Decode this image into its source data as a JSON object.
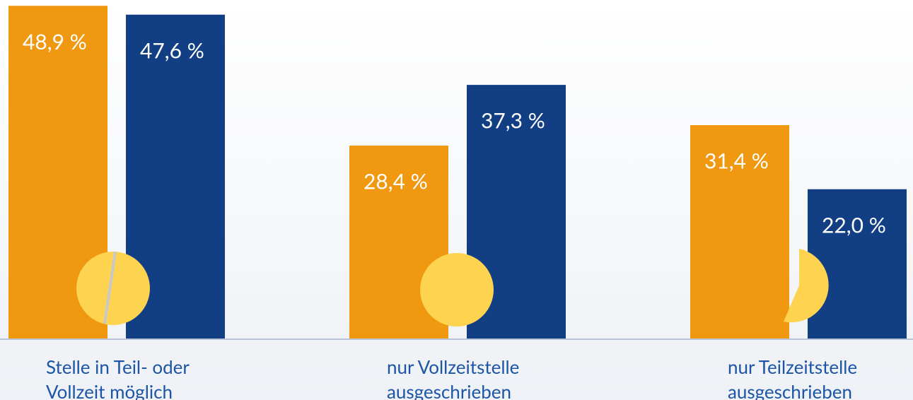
{
  "chart_data": {
    "type": "bar",
    "categories": [
      "Stelle in Teil- oder\nVollzeit möglich",
      "nur Vollzeitstelle\nausgeschrieben",
      "nur Teilzeitstelle\nausgeschrieben"
    ],
    "series": [
      {
        "color": "#f0980f",
        "values": [
          48.9,
          28.4,
          31.4
        ],
        "value_labels": [
          "48,9 %",
          "28,4 %",
          "31,4 %"
        ]
      },
      {
        "color": "#123f83",
        "values": [
          47.6,
          37.3,
          22.0
        ],
        "value_labels": [
          "47,6 %",
          "37,3 %",
          "22,0 %"
        ]
      }
    ],
    "ylim": [
      0,
      49.75
    ],
    "yticks": [
      0,
      10,
      20,
      30,
      40
    ],
    "grid": true
  }
}
